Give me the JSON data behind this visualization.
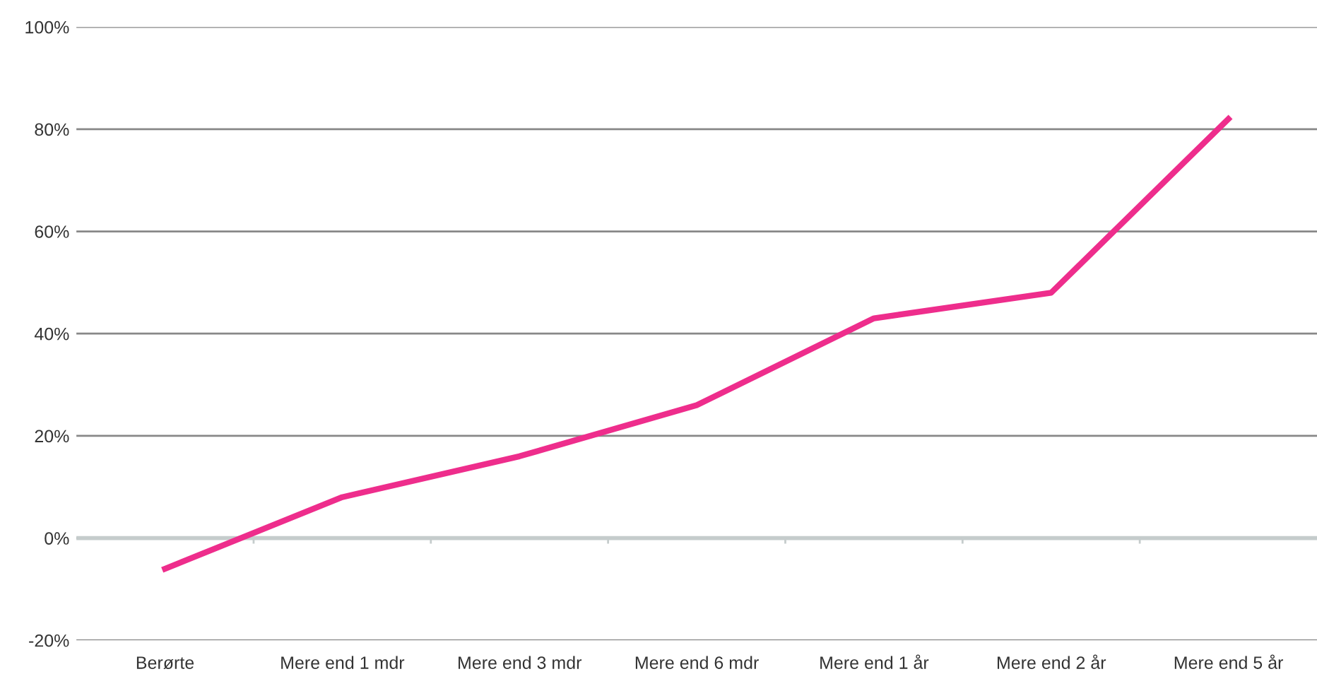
{
  "chart_data": {
    "type": "line",
    "categories": [
      "Berørte",
      "Mere end 1 mdr",
      "Mere end 3 mdr",
      "Mere end 6 mdr",
      "Mere end 1 år",
      "Mere end 2 år",
      "Mere end 5 år"
    ],
    "series": [
      {
        "color": "#ee2d8c",
        "values": [
          -6,
          8,
          16,
          26,
          43,
          48,
          82
        ]
      }
    ],
    "ylim": [
      -20,
      100
    ],
    "yticks": [
      {
        "value": -20,
        "label": "-20%"
      },
      {
        "value": 0,
        "label": "0%"
      },
      {
        "value": 20,
        "label": "20%"
      },
      {
        "value": 40,
        "label": "40%"
      },
      {
        "value": 60,
        "label": "60%"
      },
      {
        "value": 80,
        "label": "80%"
      },
      {
        "value": 100,
        "label": "100%"
      }
    ],
    "grid": "y",
    "legend": false,
    "marker": "none",
    "line_style": "solid"
  }
}
